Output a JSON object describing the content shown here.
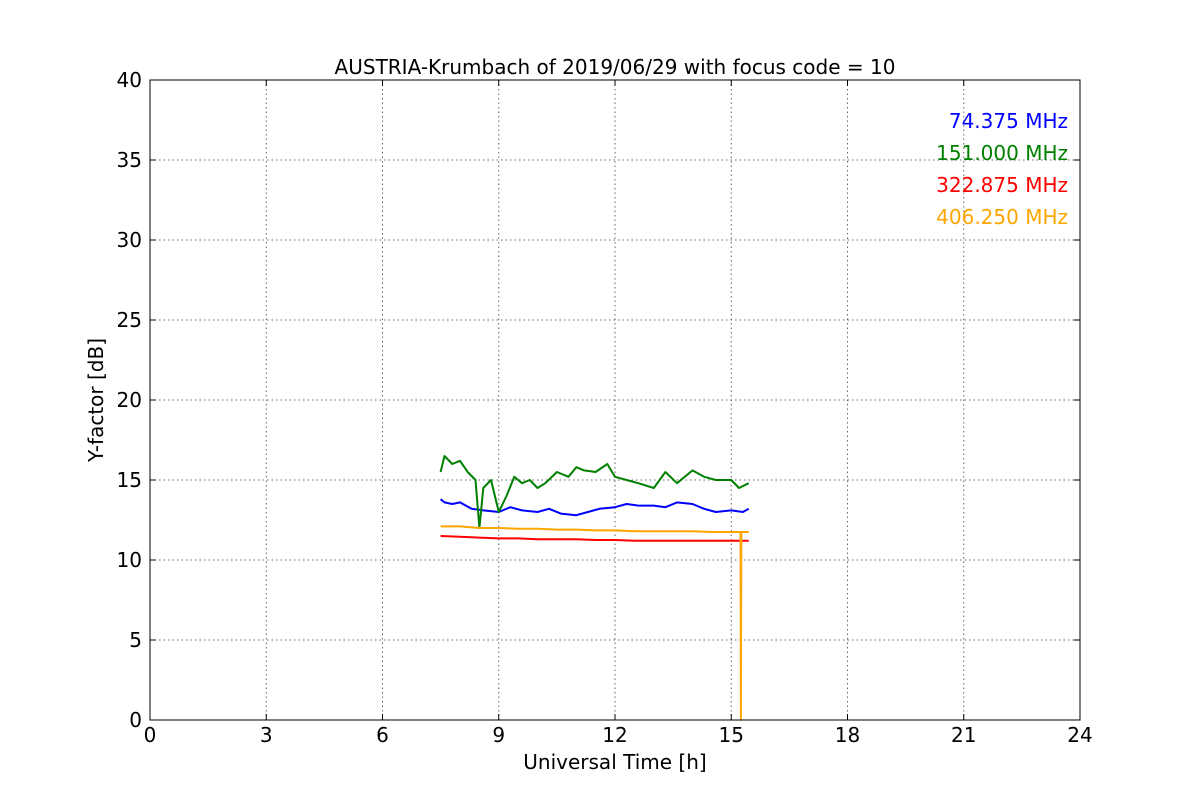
{
  "chart_data": {
    "type": "line",
    "title": "AUSTRIA-Krumbach of 2019/06/29 with focus code = 10",
    "xlabel": "Universal Time [h]",
    "ylabel": "Y-factor [dB]",
    "xlim": [
      0,
      24
    ],
    "ylim": [
      0,
      40
    ],
    "xticks": [
      0,
      3,
      6,
      9,
      12,
      15,
      18,
      21,
      24
    ],
    "yticks": [
      0,
      5,
      10,
      15,
      20,
      25,
      30,
      35,
      40
    ],
    "grid": true,
    "legend_position": "top-right",
    "series": [
      {
        "name": "74.375 MHz",
        "color": "#0000ff",
        "x": [
          7.5,
          7.6,
          7.8,
          8.0,
          8.3,
          8.6,
          9.0,
          9.3,
          9.6,
          10.0,
          10.3,
          10.6,
          11.0,
          11.3,
          11.6,
          12.0,
          12.3,
          12.6,
          13.0,
          13.3,
          13.6,
          14.0,
          14.3,
          14.6,
          15.0,
          15.3,
          15.45
        ],
        "y": [
          13.8,
          13.6,
          13.5,
          13.6,
          13.2,
          13.1,
          13.0,
          13.3,
          13.1,
          13.0,
          13.2,
          12.9,
          12.8,
          13.0,
          13.2,
          13.3,
          13.5,
          13.4,
          13.4,
          13.3,
          13.6,
          13.5,
          13.2,
          13.0,
          13.1,
          13.0,
          13.2
        ]
      },
      {
        "name": "151.000 MHz",
        "color": "#008000",
        "x": [
          7.5,
          7.6,
          7.8,
          8.0,
          8.2,
          8.4,
          8.5,
          8.6,
          8.8,
          9.0,
          9.2,
          9.4,
          9.6,
          9.8,
          10.0,
          10.2,
          10.5,
          10.8,
          11.0,
          11.2,
          11.5,
          11.8,
          12.0,
          12.3,
          12.6,
          13.0,
          13.3,
          13.6,
          14.0,
          14.3,
          14.6,
          15.0,
          15.2,
          15.45
        ],
        "y": [
          15.5,
          16.5,
          16.0,
          16.2,
          15.5,
          15.0,
          12.0,
          14.5,
          15.0,
          13.0,
          14.0,
          15.2,
          14.8,
          15.0,
          14.5,
          14.8,
          15.5,
          15.2,
          15.8,
          15.6,
          15.5,
          16.0,
          15.2,
          15.0,
          14.8,
          14.5,
          15.5,
          14.8,
          15.6,
          15.2,
          15.0,
          15.0,
          14.5,
          14.8
        ]
      },
      {
        "name": "322.875 MHz",
        "color": "#ff0000",
        "x": [
          7.5,
          8.0,
          8.5,
          9.0,
          9.5,
          10.0,
          10.5,
          11.0,
          11.5,
          12.0,
          12.5,
          13.0,
          13.5,
          14.0,
          14.5,
          15.0,
          15.45
        ],
        "y": [
          11.5,
          11.45,
          11.4,
          11.35,
          11.35,
          11.3,
          11.3,
          11.3,
          11.25,
          11.25,
          11.2,
          11.2,
          11.2,
          11.2,
          11.2,
          11.2,
          11.2
        ]
      },
      {
        "name": "406.250 MHz",
        "color": "#ffa500",
        "x": [
          7.5,
          8.0,
          8.5,
          9.0,
          9.5,
          10.0,
          10.5,
          11.0,
          11.5,
          12.0,
          12.5,
          13.0,
          13.5,
          14.0,
          14.5,
          15.0,
          15.24,
          15.25,
          15.26,
          15.45
        ],
        "y": [
          12.1,
          12.1,
          12.0,
          12.0,
          11.95,
          11.95,
          11.9,
          11.9,
          11.85,
          11.85,
          11.8,
          11.8,
          11.8,
          11.8,
          11.75,
          11.75,
          11.75,
          0,
          11.75,
          11.75
        ]
      }
    ]
  }
}
